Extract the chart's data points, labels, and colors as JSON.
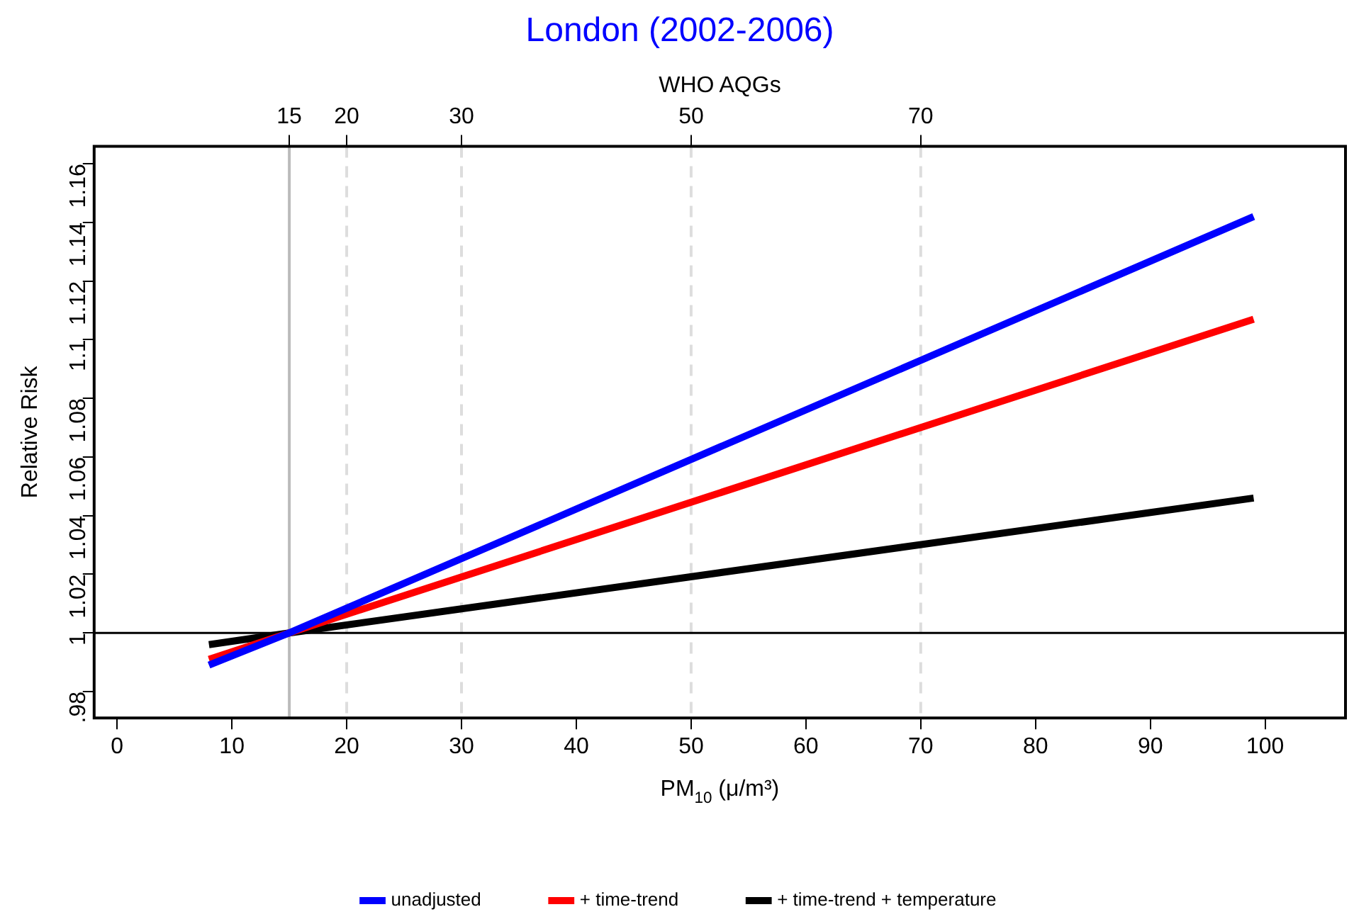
{
  "chart_data": {
    "type": "line",
    "title": "London (2002-2006)",
    "xlabel": "PM$_{10}$ (μ/m³)",
    "ylabel": "Relative Risk",
    "x2label": "WHO AQGs",
    "series": [
      {
        "name": "unadjusted",
        "color": "#0000ff",
        "x": [
          8,
          15,
          99
        ],
        "values": [
          0.989,
          1,
          1.142
        ]
      },
      {
        "name": "+ time-trend",
        "color": "#ff0000",
        "x": [
          8,
          15,
          99
        ],
        "values": [
          0.991,
          1,
          1.107
        ]
      },
      {
        "name": "+ time-trend + temperature",
        "color": "#000000",
        "x": [
          8,
          15,
          99
        ],
        "values": [
          0.996,
          1,
          1.046
        ]
      }
    ],
    "xlim": [
      -2,
      107
    ],
    "xticks": [
      0,
      10,
      20,
      30,
      40,
      50,
      60,
      70,
      80,
      90,
      100
    ],
    "x2lim": [
      -2,
      107
    ],
    "x2ticks": [
      15,
      20,
      30,
      50,
      70
    ],
    "ylim": [
      0.971,
      1.166
    ],
    "yticks": [
      {
        "value": 0.98,
        "label": ".98"
      },
      1,
      1.02,
      1.04,
      1.06,
      1.08,
      1.1,
      1.12,
      1.14,
      1.16
    ],
    "ref_lines": [
      {
        "axis": "x",
        "value": 15,
        "color": "#bbbbbb",
        "line_style": "solid"
      },
      {
        "axis": "x",
        "value": 20,
        "color": "#dddddd",
        "line_style": "dashed"
      },
      {
        "axis": "x",
        "value": 30,
        "color": "#dddddd",
        "line_style": "dashed"
      },
      {
        "axis": "x",
        "value": 50,
        "color": "#dddddd",
        "line_style": "dashed"
      },
      {
        "axis": "x",
        "value": 70,
        "color": "#dddddd",
        "line_style": "dashed"
      },
      {
        "axis": "y",
        "value": 1,
        "color": "#000000",
        "line_style": "solid"
      }
    ],
    "grid": false,
    "legend": "bottom",
    "marker": "none",
    "line_style": "solid"
  }
}
